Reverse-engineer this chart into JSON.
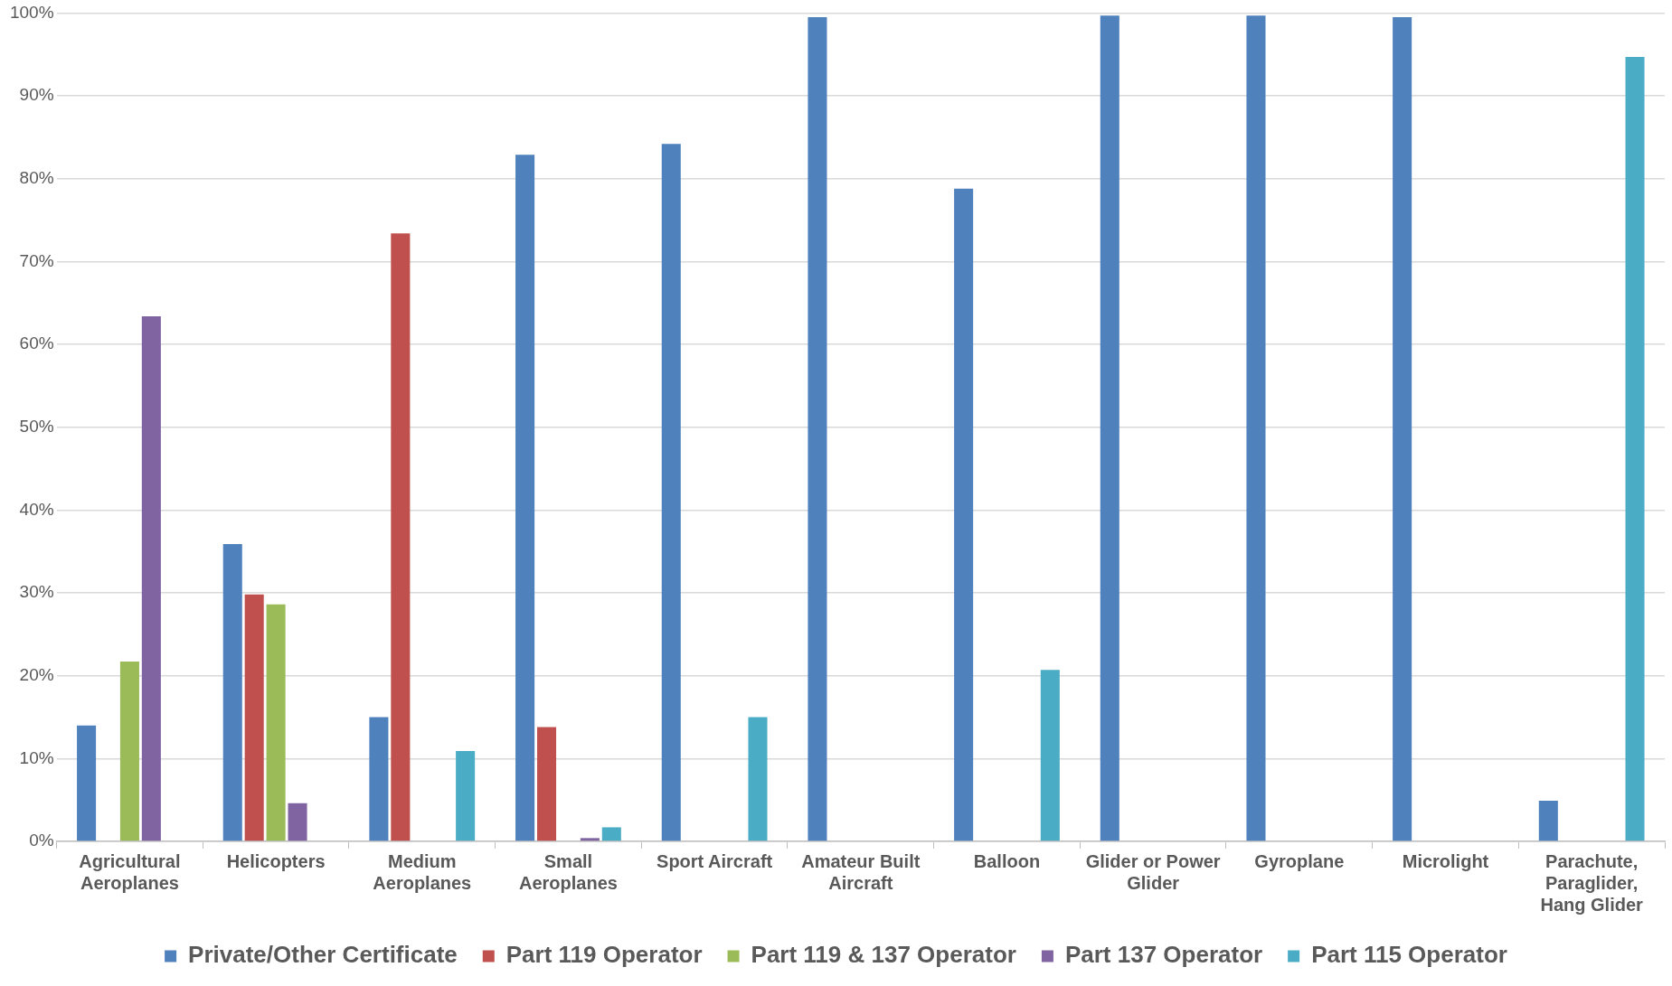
{
  "chart_data": {
    "type": "bar",
    "categories": [
      "Agricultural Aeroplanes",
      "Helicopters",
      "Medium Aeroplanes",
      "Small Aeroplanes",
      "Sport Aircraft",
      "Amateur Built Aircraft",
      "Balloon",
      "Glider or Power Glider",
      "Gyroplane",
      "Microlight",
      "Parachute, Paraglider, Hang Glider"
    ],
    "series": [
      {
        "name": "Private/Other Certificate",
        "color": "#4f81bd",
        "values": [
          14,
          35.9,
          15,
          82.9,
          84.2,
          99.5,
          78.8,
          99.7,
          99.7,
          99.5,
          4.9
        ]
      },
      {
        "name": "Part 119 Operator",
        "color": "#c0504d",
        "values": [
          null,
          29.8,
          73.4,
          13.8,
          null,
          null,
          null,
          null,
          null,
          null,
          null
        ]
      },
      {
        "name": "Part 119 & 137 Operator",
        "color": "#9bbb59",
        "values": [
          21.7,
          28.6,
          null,
          null,
          null,
          null,
          null,
          null,
          null,
          null,
          null
        ]
      },
      {
        "name": "Part 137 Operator",
        "color": "#8064a2",
        "values": [
          63.4,
          4.6,
          null,
          0.4,
          null,
          null,
          null,
          null,
          null,
          null,
          null
        ]
      },
      {
        "name": "Part 115 Operator",
        "color": "#4bacc6",
        "values": [
          null,
          null,
          10.9,
          1.7,
          15,
          null,
          20.7,
          null,
          null,
          null,
          94.7
        ]
      }
    ],
    "ylim": [
      0,
      100
    ],
    "yticks": [
      {
        "value": 0,
        "label": "0%"
      },
      {
        "value": 10,
        "label": "10%"
      },
      {
        "value": 20,
        "label": "20%"
      },
      {
        "value": 30,
        "label": "30%"
      },
      {
        "value": 40,
        "label": "40%"
      },
      {
        "value": 50,
        "label": "50%"
      },
      {
        "value": 60,
        "label": "60%"
      },
      {
        "value": 70,
        "label": "70%"
      },
      {
        "value": 80,
        "label": "80%"
      },
      {
        "value": 90,
        "label": "90%"
      },
      {
        "value": 100,
        "label": "100%"
      }
    ],
    "grid": "y",
    "legend": "bottom"
  }
}
